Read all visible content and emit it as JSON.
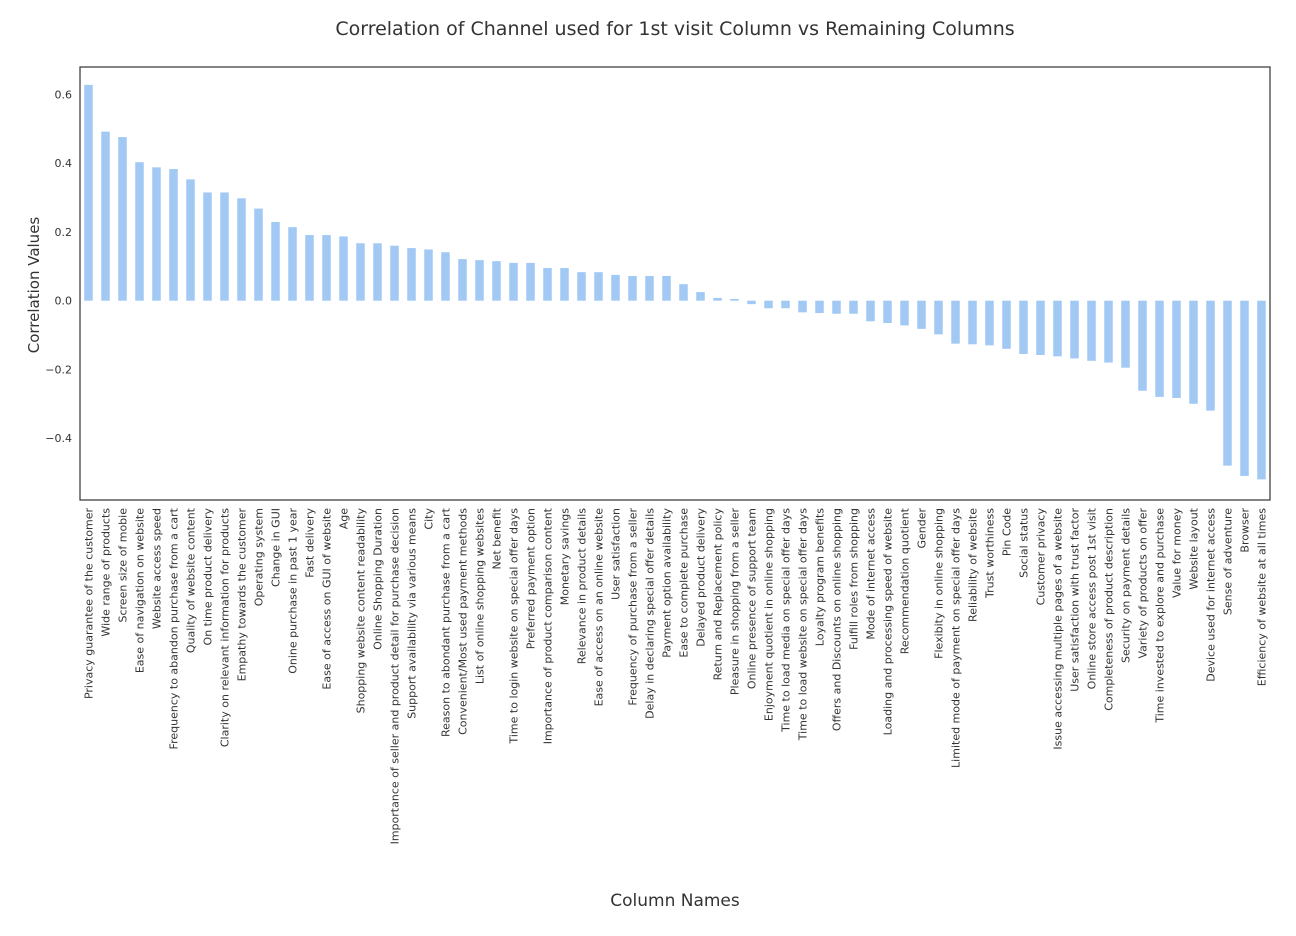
{
  "chart_data": {
    "type": "bar",
    "title": "Correlation of Channel used for 1st visit Column vs Remaining Columns",
    "xlabel": "Column Names",
    "ylabel": "Correlation Values",
    "ylim": [
      -0.58,
      0.68
    ],
    "yticks": [
      -0.4,
      -0.2,
      0.0,
      0.2,
      0.4,
      0.6
    ],
    "ytick_labels": [
      "−0.4",
      "−0.2",
      "0.0",
      "0.2",
      "0.4",
      "0.6"
    ],
    "grid": false,
    "bar_color": "#a1c9f4",
    "categories": [
      "Privacy guarantee of the customer",
      "Wide range of products",
      "Screen size of mobie",
      "Ease of navigation on website",
      "Website access speed",
      "Frequency to abandon purchase from a cart",
      "Quality of website content",
      "On time product delivery",
      "Clarity on relevant information for products",
      "Empathy towards the customer",
      "Operating system",
      "Change in GUI",
      "Onine purchase in past 1 year",
      "Fast delivery",
      "Ease of access on GUI of website",
      "Age",
      "Shopping website content readability",
      "Online Shopping Duration",
      "Importance of seller and product detail for purchase decision",
      "Support availability via various means",
      "City",
      "Reason to abondant purchase from a cart",
      "Convenient/Most used payment methods",
      "List of online shopping websites",
      "Net benefit",
      "Time to login website on special offer days",
      "Preferred payment option",
      "Importance of product comparison content",
      "Monetary savings",
      "Relevance in product details",
      "Ease of access on an online website",
      "User satisfaction",
      "Frequency of purchase from a seller",
      "Delay in declaring special offer details",
      "Payment option availability",
      "Ease to complete purchase",
      "Delayed product delivery",
      "Return and Replacement policy",
      "Pleasure in shopping from a seller",
      "Online presence of support team",
      "Enjoyment quotient in online shopping",
      "Time to load media on special offer days",
      "Time to load website on special offer days",
      "Loyalty program benefits",
      "Offers and Discounts on online shopping",
      "Fulfill roles from shopping",
      "Mode of internet access",
      "Loading and processing speed of website",
      "Recommendation quotient",
      "Gender",
      "Flexibity in online shopping",
      "Limited mode of payment on special offer days",
      "Reliability of website",
      "Trust worthiness",
      "Pin Code",
      "Social status",
      "Customer privacy",
      "Issue accessing multiple pages of a website",
      "User satisfaction with trust factor",
      "Online store access post 1st visit",
      "Completeness of product description",
      "Security on payment details",
      "Variety of products on offer",
      "Time invested to explore and purchase",
      "Value for money",
      "Website layout",
      "Device used for internet access",
      "Sense of adventure",
      "Browser",
      "Efficiency of website at all times"
    ],
    "values": [
      0.628,
      0.492,
      0.476,
      0.403,
      0.388,
      0.383,
      0.353,
      0.315,
      0.315,
      0.298,
      0.268,
      0.229,
      0.214,
      0.191,
      0.191,
      0.187,
      0.167,
      0.167,
      0.16,
      0.153,
      0.149,
      0.141,
      0.121,
      0.118,
      0.115,
      0.11,
      0.11,
      0.095,
      0.095,
      0.083,
      0.083,
      0.075,
      0.072,
      0.072,
      0.072,
      0.048,
      0.025,
      0.008,
      0.005,
      -0.01,
      -0.022,
      -0.022,
      -0.034,
      -0.036,
      -0.038,
      -0.038,
      -0.06,
      -0.065,
      -0.072,
      -0.082,
      -0.098,
      -0.125,
      -0.127,
      -0.13,
      -0.14,
      -0.155,
      -0.158,
      -0.162,
      -0.168,
      -0.175,
      -0.18,
      -0.195,
      -0.262,
      -0.28,
      -0.283,
      -0.3,
      -0.32,
      -0.48,
      -0.51,
      -0.52
    ]
  }
}
